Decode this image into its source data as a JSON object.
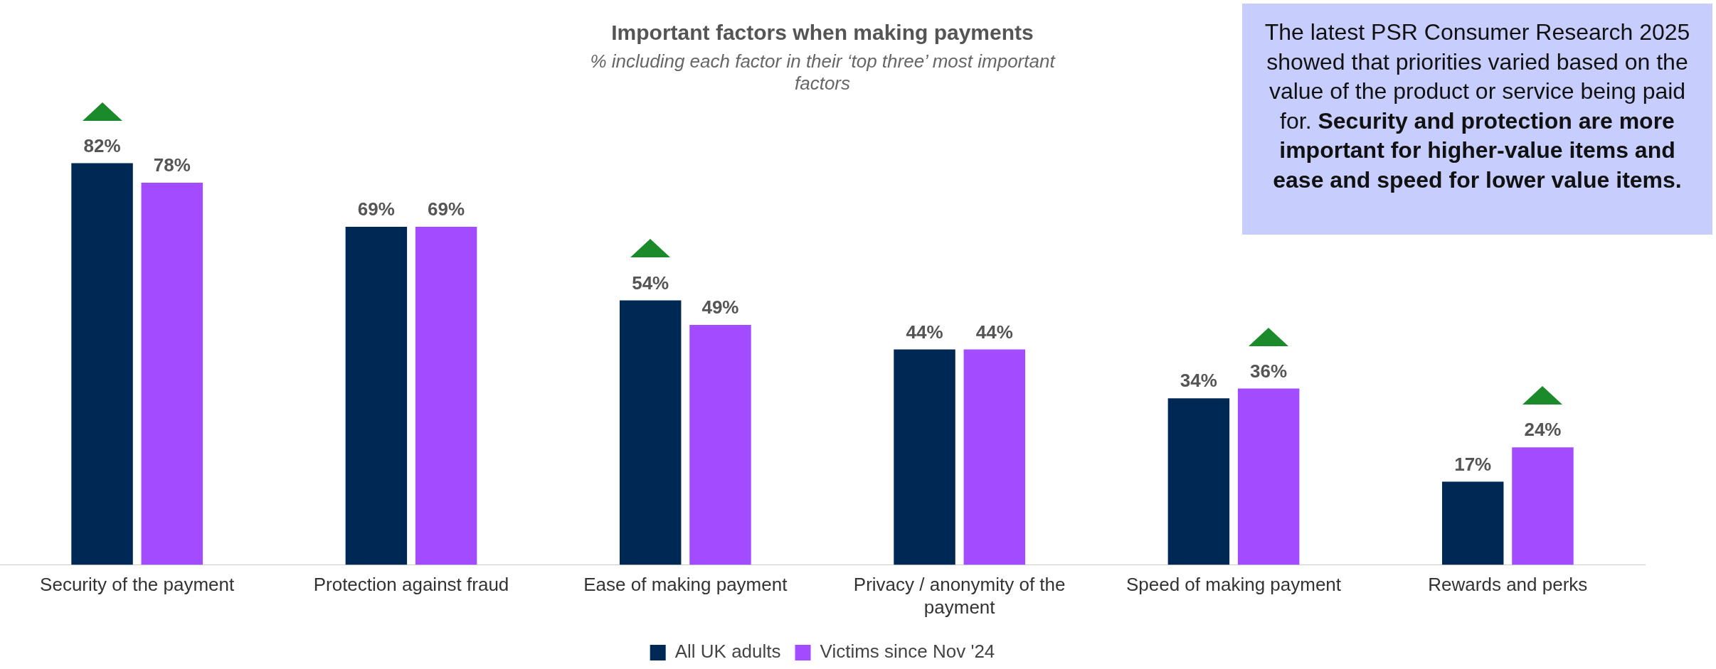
{
  "chart_data": {
    "type": "bar",
    "title": "Important factors when making payments",
    "subtitle": "% including each factor in their ‘top three’ most important factors",
    "categories": [
      "Security of the payment",
      "Protection against fraud",
      "Ease of making payment",
      "Privacy / anonymity of the payment",
      "Speed of making payment",
      "Rewards and perks"
    ],
    "series": [
      {
        "name": "All UK adults",
        "color": "#002855",
        "values": [
          82,
          69,
          54,
          44,
          34,
          17
        ],
        "value_labels": [
          "82%",
          "69%",
          "54%",
          "44%",
          "34%",
          "17%"
        ]
      },
      {
        "name": "Victims since Nov '24",
        "color": "#a34bff",
        "values": [
          78,
          69,
          49,
          44,
          36,
          24
        ],
        "value_labels": [
          "78%",
          "69%",
          "49%",
          "44%",
          "36%",
          "24%"
        ]
      }
    ],
    "legend": "bottom",
    "grid": false,
    "annotations": [
      "The latest PSR Consumer Research 2025 showed that priorities varied based on the value of the product or service being paid for.",
      "Security and protection are more important for higher-value items and ease and speed for lower value items."
    ]
  }
}
